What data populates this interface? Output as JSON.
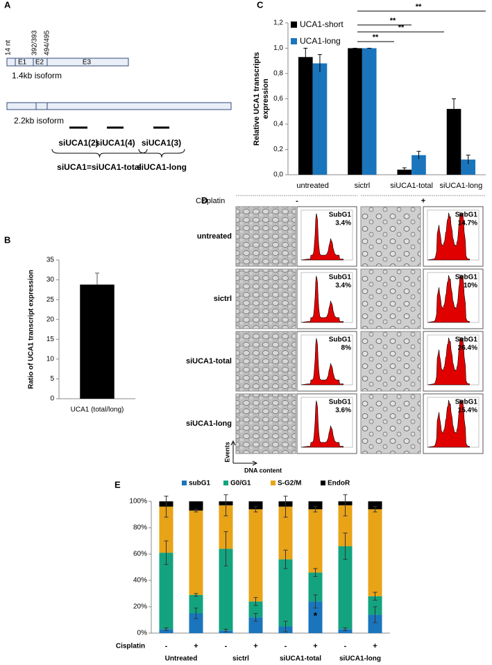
{
  "panel_labels": [
    "A",
    "B",
    "C",
    "D",
    "E"
  ],
  "diagram": {
    "tick_labels": [
      "14 nt",
      "392/393",
      "494/495"
    ],
    "exons": [
      "E1",
      "E2",
      "E3"
    ],
    "isoforms": [
      "1.4kb isoform",
      "2.2kb isoform"
    ],
    "sirnas": [
      "siUCA1(2)",
      "siUCA1(4)",
      "siUCA1(3)"
    ],
    "groups": [
      "siUCA1=siUCA1-total",
      "siUCA1-long"
    ]
  },
  "panel_d": {
    "title": "Cisplatin",
    "conditions": [
      "-",
      "+"
    ],
    "subg1_label": "SubG1",
    "y_axis": "Events",
    "x_axis": "DNA content",
    "rows": [
      {
        "label": "untreated",
        "subg1": [
          "3.4%",
          "14.7%"
        ]
      },
      {
        "label": "sictrl",
        "subg1": [
          "3.4%",
          "10%"
        ]
      },
      {
        "label": "siUCA1-total",
        "subg1": [
          "8%",
          "26.4%"
        ]
      },
      {
        "label": "siUCA1-long",
        "subg1": [
          "3.6%",
          "15.4%"
        ]
      }
    ]
  },
  "chart_data": [
    {
      "type": "bar",
      "ylabel": "Ratio of UCA1 transcript expression",
      "categories": [
        "UCA1 (total/long)"
      ],
      "values": [
        28.8
      ],
      "errors": [
        2.9
      ],
      "color": "#000000",
      "ylim": [
        0,
        35
      ],
      "yticks": [
        0,
        5,
        10,
        15,
        20,
        25,
        30,
        35
      ]
    },
    {
      "type": "bar",
      "ylabel_lines": [
        "Relative UCA1 transcripts",
        "expression"
      ],
      "categories": [
        "untreated",
        "sictrl",
        "siUCA1-total",
        "siUCA1-long"
      ],
      "series": [
        {
          "name": "UCA1-short",
          "color": "#000000",
          "values": [
            0.93,
            1.0,
            0.04,
            0.52
          ],
          "errors": [
            0.07,
            0.0,
            0.015,
            0.08
          ]
        },
        {
          "name": "UCA1-long",
          "color": "#1a75bc",
          "values": [
            0.88,
            1.0,
            0.155,
            0.12
          ],
          "errors": [
            0.07,
            0.0,
            0.03,
            0.035
          ]
        }
      ],
      "ylim": [
        0,
        1.2
      ],
      "yticks": [
        {
          "value": 0,
          "label": "0,0"
        },
        {
          "value": 0.2,
          "label": "0,2"
        },
        {
          "value": 0.4,
          "label": "0,4"
        },
        {
          "value": 0.6,
          "label": "0,6"
        },
        {
          "value": 0.8,
          "label": "0,8"
        },
        {
          "value": 1.0,
          "label": "1,0"
        },
        {
          "value": 1.2,
          "label": "1,2"
        }
      ],
      "significance": [
        "**",
        "**",
        "**",
        "**"
      ]
    },
    {
      "type": "stacked_bar",
      "xlabel": "Cisplatin",
      "categories": [
        "-",
        "+",
        "-",
        "+",
        "-",
        "+",
        "-",
        "+"
      ],
      "groups": [
        "Untreated",
        "sictrl",
        "siUCA1-total",
        "siUCA1-long"
      ],
      "series": [
        {
          "name": "subG1",
          "color": "#1a75bc",
          "values": [
            3,
            15,
            2,
            12,
            5,
            24,
            3,
            14
          ],
          "errors": [
            1,
            4,
            1,
            3,
            4,
            5,
            1,
            6
          ]
        },
        {
          "name": "G0/G1",
          "color": "#13a37f",
          "values": [
            58,
            14,
            62,
            12,
            51,
            22,
            63,
            14
          ],
          "errors": [
            9,
            1,
            13,
            3,
            7,
            3,
            10,
            3
          ]
        },
        {
          "name": "S-G2/M",
          "color": "#e8a317",
          "values": [
            35,
            64,
            33,
            70,
            40,
            48,
            31,
            66
          ],
          "errors": [
            8,
            1,
            8,
            2,
            8,
            2,
            8,
            2
          ]
        },
        {
          "name": "EndoR",
          "color": "#000000",
          "values": [
            4,
            7,
            3,
            6,
            4,
            6,
            3,
            6
          ]
        }
      ],
      "ylim": [
        0,
        100
      ],
      "yticks": [
        {
          "value": 0,
          "label": "0%"
        },
        {
          "value": 20,
          "label": "20%"
        },
        {
          "value": 40,
          "label": "40%"
        },
        {
          "value": 60,
          "label": "60%"
        },
        {
          "value": 80,
          "label": "80%"
        },
        {
          "value": 100,
          "label": "100%"
        }
      ],
      "annotations": [
        "*"
      ]
    }
  ]
}
